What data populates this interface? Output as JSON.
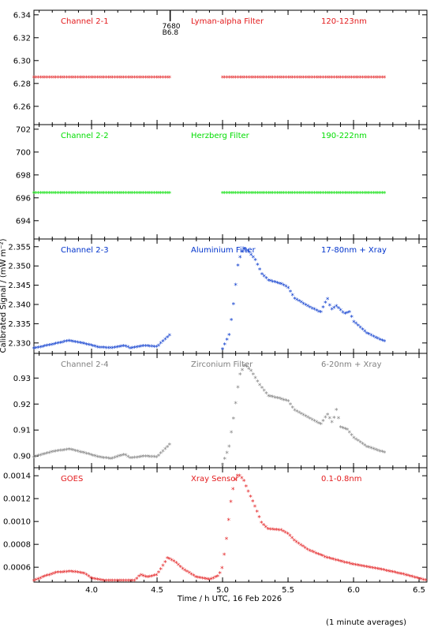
{
  "chart_data": [
    {
      "type": "scatter",
      "labels": {
        "left": "Channel 2-1",
        "center": "Lyman-alpha Filter",
        "right": "120-123nm"
      },
      "color": "#e31a1c",
      "ylim": [
        6.244,
        6.344
      ],
      "yticks": [
        6.26,
        6.28,
        6.3,
        6.32,
        6.34
      ],
      "ytick_labels": [
        "6.26",
        "6.28",
        "6.30",
        "6.32",
        "6.34"
      ],
      "annotation": {
        "x": 4.6,
        "lines": [
          "7680",
          "B6.8"
        ]
      },
      "segments": [
        {
          "x_start": 3.56,
          "x_end": 4.6,
          "points": [
            [
              3.56,
              6.285
            ],
            [
              4.6,
              6.285
            ]
          ]
        },
        {
          "x_start": 5.0,
          "x_end": 6.25,
          "points": [
            [
              5.0,
              6.285
            ],
            [
              6.25,
              6.285
            ]
          ]
        }
      ]
    },
    {
      "type": "scatter",
      "labels": {
        "left": "Channel 2-2",
        "center": "Herzberg Filter",
        "right": "190-222nm"
      },
      "color": "#00dd00",
      "ylim": [
        692.4,
        702.4
      ],
      "yticks": [
        694,
        696,
        698,
        700,
        702
      ],
      "ytick_labels": [
        "694",
        "696",
        "698",
        "700",
        "702"
      ],
      "segments": [
        {
          "x_start": 3.56,
          "x_end": 4.6,
          "points": [
            [
              3.56,
              696.4
            ],
            [
              4.6,
              696.4
            ]
          ]
        },
        {
          "x_start": 5.0,
          "x_end": 6.25,
          "points": [
            [
              5.0,
              696.4
            ],
            [
              6.25,
              696.4
            ]
          ]
        }
      ]
    },
    {
      "type": "scatter",
      "labels": {
        "left": "Channel 2-3",
        "center": "Aluminium Filter",
        "right": "17-80nm + Xray"
      },
      "color": "#0033cc",
      "ylim": [
        2.3273,
        2.357
      ],
      "yticks": [
        2.33,
        2.335,
        2.34,
        2.345,
        2.35,
        2.355
      ],
      "ytick_labels": [
        "2.330",
        "2.335",
        "2.340",
        "2.345",
        "2.350",
        "2.355"
      ],
      "segments": [
        {
          "x_start": 3.56,
          "x_end": 4.6,
          "points": [
            [
              3.56,
              2.3285
            ],
            [
              3.7,
              2.3295
            ],
            [
              3.83,
              2.3305
            ],
            [
              3.95,
              2.3297
            ],
            [
              4.05,
              2.3288
            ],
            [
              4.15,
              2.3286
            ],
            [
              4.25,
              2.3292
            ],
            [
              4.3,
              2.3285
            ],
            [
              4.4,
              2.3292
            ],
            [
              4.5,
              2.3289
            ],
            [
              4.55,
              2.3305
            ],
            [
              4.6,
              2.332
            ]
          ]
        },
        {
          "x_start": 5.0,
          "x_end": 6.25,
          "points": [
            [
              5.0,
              2.3283
            ],
            [
              5.05,
              2.332
            ],
            [
              5.08,
              2.339
            ],
            [
              5.12,
              2.351
            ],
            [
              5.16,
              2.3545
            ],
            [
              5.2,
              2.3535
            ],
            [
              5.25,
              2.3515
            ],
            [
              5.3,
              2.3478
            ],
            [
              5.35,
              2.3462
            ],
            [
              5.45,
              2.3452
            ],
            [
              5.5,
              2.3443
            ],
            [
              5.55,
              2.3415
            ],
            [
              5.65,
              2.3395
            ],
            [
              5.75,
              2.3378
            ],
            [
              5.8,
              2.3415
            ],
            [
              5.83,
              2.3385
            ],
            [
              5.87,
              2.3395
            ],
            [
              5.93,
              2.3375
            ],
            [
              5.97,
              2.338
            ],
            [
              6.0,
              2.3355
            ],
            [
              6.1,
              2.3325
            ],
            [
              6.2,
              2.3308
            ],
            [
              6.25,
              2.3302
            ]
          ]
        }
      ]
    },
    {
      "type": "scatter",
      "labels": {
        "left": "Channel 2-4",
        "center": "Zirconium Filter",
        "right": "6-20nm + Xray"
      },
      "color": "#808080",
      "ylim": [
        0.8955,
        0.9395
      ],
      "yticks": [
        0.9,
        0.91,
        0.92,
        0.93
      ],
      "ytick_labels": [
        "0.90",
        "0.91",
        "0.92",
        "0.93"
      ],
      "segments": [
        {
          "x_start": 3.56,
          "x_end": 4.6,
          "points": [
            [
              3.56,
              0.8995
            ],
            [
              3.7,
              0.9015
            ],
            [
              3.83,
              0.9025
            ],
            [
              3.95,
              0.901
            ],
            [
              4.05,
              0.8995
            ],
            [
              4.15,
              0.8988
            ],
            [
              4.25,
              0.9005
            ],
            [
              4.3,
              0.899
            ],
            [
              4.4,
              0.8998
            ],
            [
              4.5,
              0.8995
            ],
            [
              4.55,
              0.902
            ],
            [
              4.6,
              0.9045
            ]
          ]
        },
        {
          "x_start": 5.0,
          "x_end": 6.25,
          "points": [
            [
              5.0,
              0.8965
            ],
            [
              5.05,
              0.9035
            ],
            [
              5.09,
              0.9165
            ],
            [
              5.13,
              0.931
            ],
            [
              5.17,
              0.935
            ],
            [
              5.22,
              0.9325
            ],
            [
              5.28,
              0.9275
            ],
            [
              5.35,
              0.923
            ],
            [
              5.45,
              0.9218
            ],
            [
              5.5,
              0.921
            ],
            [
              5.55,
              0.9175
            ],
            [
              5.65,
              0.9148
            ],
            [
              5.75,
              0.912
            ],
            [
              5.8,
              0.916
            ],
            [
              5.84,
              0.9125
            ],
            [
              5.87,
              0.918
            ],
            [
              5.9,
              0.911
            ],
            [
              5.95,
              0.9102
            ],
            [
              6.0,
              0.907
            ],
            [
              6.1,
              0.9035
            ],
            [
              6.2,
              0.9018
            ],
            [
              6.25,
              0.901
            ]
          ]
        }
      ]
    },
    {
      "type": "scatter",
      "labels": {
        "left": "GOES",
        "center": "Xray Sensor",
        "right": "0.1-0.8nm"
      },
      "color": "#e31a1c",
      "ylim": [
        0.00047,
        0.00147
      ],
      "yticks": [
        0.0006,
        0.0008,
        0.001,
        0.0012,
        0.0014
      ],
      "ytick_labels": [
        "0.0006",
        "0.0008",
        "0.0010",
        "0.0012",
        "0.0014"
      ],
      "xlim": [
        3.56,
        6.56
      ],
      "xticks": [
        4.0,
        4.5,
        5.0,
        5.5,
        6.0,
        6.5
      ],
      "xtick_labels": [
        "4.0",
        "4.5",
        "5.0",
        "5.5",
        "6.0",
        "6.5"
      ],
      "xlabel": "Time / h UTC, 16 Feb 2026",
      "segments": [
        {
          "x_start": 3.56,
          "x_end": 6.56,
          "points": [
            [
              3.56,
              0.00048
            ],
            [
              3.65,
              0.00052
            ],
            [
              3.73,
              0.00055
            ],
            [
              3.85,
              0.00056
            ],
            [
              3.95,
              0.00054
            ],
            [
              4.0,
              0.0005
            ],
            [
              4.1,
              0.00048
            ],
            [
              4.2,
              0.00048
            ],
            [
              4.33,
              0.00048
            ],
            [
              4.37,
              0.00053
            ],
            [
              4.43,
              0.00051
            ],
            [
              4.5,
              0.00053
            ],
            [
              4.55,
              0.00062
            ],
            [
              4.58,
              0.00068
            ],
            [
              4.63,
              0.00065
            ],
            [
              4.7,
              0.00058
            ],
            [
              4.8,
              0.00051
            ],
            [
              4.9,
              0.00049
            ],
            [
              4.97,
              0.00052
            ],
            [
              5.0,
              0.0006
            ],
            [
              5.03,
              0.00085
            ],
            [
              5.06,
              0.00115
            ],
            [
              5.09,
              0.00135
            ],
            [
              5.12,
              0.00141
            ],
            [
              5.16,
              0.00136
            ],
            [
              5.2,
              0.00125
            ],
            [
              5.25,
              0.00112
            ],
            [
              5.3,
              0.00098
            ],
            [
              5.35,
              0.00093
            ],
            [
              5.45,
              0.00092
            ],
            [
              5.5,
              0.00089
            ],
            [
              5.55,
              0.00083
            ],
            [
              5.65,
              0.00075
            ],
            [
              5.8,
              0.00068
            ],
            [
              6.0,
              0.00062
            ],
            [
              6.2,
              0.00058
            ],
            [
              6.4,
              0.00053
            ],
            [
              6.56,
              0.00048
            ]
          ]
        }
      ]
    }
  ],
  "shared": {
    "ylabel": "Calibrated Signal / (mW m⁻²)",
    "footer": "(1 minute averages)"
  }
}
